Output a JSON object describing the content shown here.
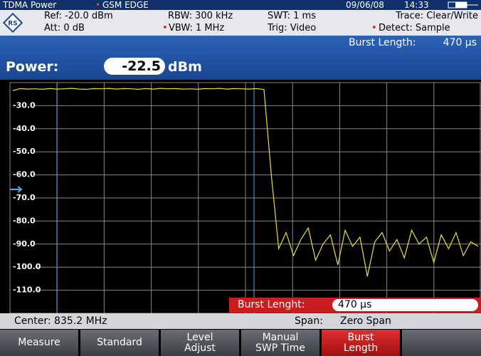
{
  "status_bar": {
    "mode": "TDMA Power",
    "standard": "GSM EDGE",
    "date": "09/06/08",
    "time": "14:33"
  },
  "settings": {
    "ref": "Ref: -20.0 dBm",
    "att": "Att: 0 dB",
    "rbw": "RBW: 300 kHz",
    "vbw": "VBW: 1 MHz",
    "swt": "SWT: 1 ms",
    "trig": "Trig: Video",
    "trace": "Trace: Clear/Write",
    "detect": "Detect: Sample"
  },
  "measurement": {
    "label": "Power:",
    "value": "-22.5",
    "unit": "dBm",
    "burst_length_label": "Burst Length:",
    "burst_length_value": "470 µs"
  },
  "chart_data": {
    "type": "line",
    "color": "#e8e040",
    "grid": true,
    "ylim": [
      -120,
      -20
    ],
    "yticks": [
      {
        "value": -30,
        "label": "-30.0"
      },
      {
        "value": -40,
        "label": "-40.0"
      },
      {
        "value": -50,
        "label": "-50.0"
      },
      {
        "value": -60,
        "label": "-60.0"
      },
      {
        "value": -70,
        "label": "-70.0"
      },
      {
        "value": -80,
        "label": "-80.0"
      },
      {
        "value": -90,
        "label": "-90.0"
      },
      {
        "value": -100,
        "label": "-100.0"
      },
      {
        "value": -110,
        "label": "-110.0"
      }
    ],
    "values": [
      -23.5,
      -22.6,
      -22.8,
      -22.7,
      -22.9,
      -22.6,
      -22.8,
      -22.7,
      -22.5,
      -22.8,
      -22.9,
      -22.6,
      -22.7,
      -22.5,
      -22.8,
      -22.6,
      -22.7,
      -22.9,
      -22.6,
      -22.8,
      -22.5,
      -22.7,
      -22.6,
      -22.8,
      -22.7,
      -22.9,
      -22.6,
      -22.7,
      -22.5,
      -22.8,
      -22.6,
      -22.7,
      -22.8,
      -22.6,
      -23.0,
      -60,
      -92,
      -85,
      -95,
      -88,
      -83,
      -97,
      -90,
      -86,
      -99,
      -84,
      -91,
      -87,
      -104,
      -89,
      -85,
      -93,
      -88,
      -96,
      -84,
      -90,
      -87,
      -98,
      -86,
      -92,
      -85,
      -95,
      -89,
      -91
    ]
  },
  "input": {
    "label": "Burst Lenght:",
    "value": "470 µs"
  },
  "footer": {
    "center": "Center: 835.2 MHz",
    "span_label": "Span:",
    "span_value": "Zero Span"
  },
  "softkeys": [
    "Measure",
    "Standard",
    "Level Adjust",
    "Manual SWP Time",
    "Burst Length"
  ]
}
